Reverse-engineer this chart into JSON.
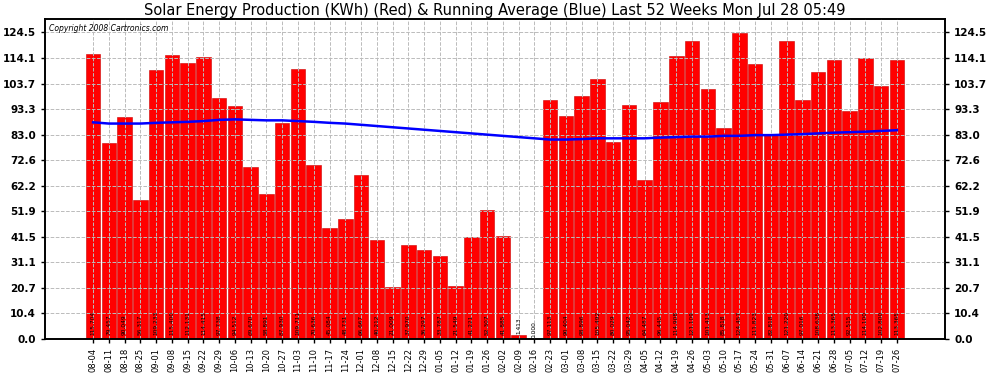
{
  "title": "Solar Energy Production (KWh) (Red) & Running Average (Blue) Last 52 Weeks Mon Jul 28 05:49",
  "copyright": "Copyright 2008 Cartronics.com",
  "bar_color": "#ff0000",
  "bar_edge_color": "#cc0000",
  "avg_line_color": "#0000ff",
  "bg_color": "#ffffff",
  "grid_color": "#bbbbbb",
  "categories": [
    "08-04",
    "08-11",
    "08-18",
    "08-25",
    "09-01",
    "09-08",
    "09-15",
    "09-22",
    "09-29",
    "10-06",
    "10-13",
    "10-20",
    "10-27",
    "11-03",
    "11-10",
    "11-17",
    "11-24",
    "12-01",
    "12-08",
    "12-15",
    "12-22",
    "12-29",
    "01-05",
    "01-12",
    "01-19",
    "01-26",
    "02-02",
    "02-09",
    "02-16",
    "02-23",
    "03-01",
    "03-08",
    "03-15",
    "03-22",
    "03-29",
    "04-05",
    "04-12",
    "04-19",
    "04-26",
    "05-03",
    "05-10",
    "05-17",
    "05-24",
    "05-31",
    "06-07",
    "06-14",
    "06-21",
    "06-28",
    "07-05",
    "07-12",
    "07-19",
    "07-26"
  ],
  "values": [
    115.704,
    79.457,
    90.049,
    56.317,
    109.233,
    115.4,
    112.131,
    114.415,
    97.738,
    94.512,
    69.67,
    58.891,
    87.93,
    109.711,
    70.636,
    45.084,
    48.731,
    66.667,
    40.212,
    21.009,
    37.97,
    36.297,
    33.787,
    21.549,
    41.221,
    52.307,
    41.885,
    1.413,
    0.0,
    97.113,
    90.404,
    98.896,
    105.492,
    80.029,
    95.042,
    64.487,
    96.445,
    114.908,
    121.109,
    101.413,
    85.818,
    124.457,
    111.823,
    82.818,
    121.22,
    97.016,
    108.638,
    113.365,
    92.515,
    114.1,
    102.8,
    113.365
  ],
  "running_avg": [
    88.0,
    87.5,
    87.5,
    87.5,
    87.8,
    88.0,
    88.2,
    88.5,
    89.0,
    89.2,
    89.0,
    88.8,
    88.8,
    88.5,
    88.2,
    87.8,
    87.5,
    87.0,
    86.5,
    86.0,
    85.5,
    85.0,
    84.5,
    84.0,
    83.5,
    83.0,
    82.5,
    82.0,
    81.5,
    81.0,
    81.0,
    81.2,
    81.5,
    81.5,
    81.5,
    81.5,
    81.8,
    82.0,
    82.2,
    82.2,
    82.5,
    82.5,
    82.8,
    82.8,
    83.0,
    83.2,
    83.5,
    83.8,
    84.0,
    84.2,
    84.5,
    84.8
  ],
  "yticks": [
    0.0,
    10.4,
    20.7,
    31.1,
    41.5,
    51.9,
    62.2,
    72.6,
    83.0,
    93.3,
    103.7,
    114.1,
    124.5
  ],
  "ylim": [
    0,
    130
  ],
  "title_fontsize": 10.5
}
